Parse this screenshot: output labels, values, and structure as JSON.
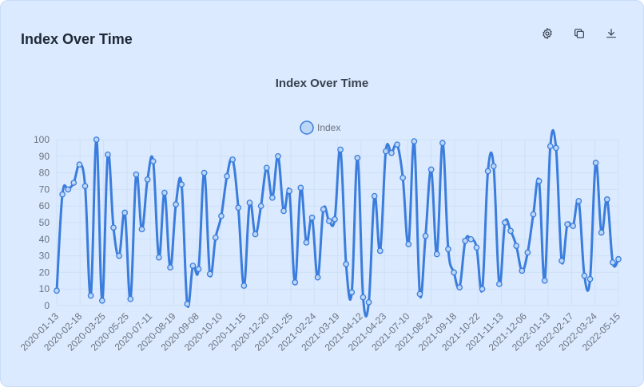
{
  "card": {
    "title": "Index Over Time"
  },
  "toolbar": [
    {
      "name": "settings-icon",
      "icon": "gear"
    },
    {
      "name": "copy-icon",
      "icon": "copy"
    },
    {
      "name": "download-icon",
      "icon": "download"
    }
  ],
  "colors": {
    "line": "#3b7ddd",
    "point_fill": "#bcd6f6",
    "grid": "#cfe0f5",
    "text": "#6b7280",
    "title": "#374151"
  },
  "chart_data": {
    "type": "line",
    "title": "Index Over Time",
    "legend": {
      "entries": [
        "Index"
      ],
      "position": "top-center"
    },
    "ylim": [
      0,
      100
    ],
    "yticks": [
      0,
      10,
      20,
      30,
      40,
      50,
      60,
      70,
      80,
      90,
      100
    ],
    "xtick_labels": [
      "2020-01-13",
      "2020-02-18",
      "2020-03-25",
      "2020-05-25",
      "2020-07-11",
      "2020-08-19",
      "2020-09-08",
      "2020-10-10",
      "2020-11-15",
      "2020-12-20",
      "2021-01-25",
      "2021-02-24",
      "2021-03-19",
      "2021-04-12",
      "2021-04-23",
      "2021-07-10",
      "2021-08-24",
      "2021-09-18",
      "2021-10-22",
      "2021-11-13",
      "2021-12-06",
      "2022-01-13",
      "2022-02-17",
      "2022-03-24",
      "2022-05-15"
    ],
    "grid": true,
    "series": [
      {
        "name": "Index",
        "values": [
          9,
          67,
          70,
          74,
          85,
          72,
          6,
          100,
          3,
          91,
          47,
          30,
          56,
          4,
          79,
          46,
          76,
          87,
          29,
          68,
          23,
          61,
          73,
          1,
          24,
          22,
          80,
          19,
          41,
          54,
          78,
          88,
          59,
          12,
          62,
          43,
          60,
          83,
          65,
          90,
          57,
          69,
          14,
          71,
          38,
          53,
          17,
          58,
          51,
          52,
          94,
          25,
          8,
          89,
          5,
          2,
          66,
          33,
          93,
          92,
          97,
          77,
          37,
          99,
          7,
          42,
          82,
          31,
          98,
          34,
          20,
          11,
          39,
          40,
          35,
          10,
          81,
          84,
          13,
          50,
          45,
          36,
          21,
          32,
          55,
          75,
          15,
          96,
          95,
          27,
          49,
          48,
          63,
          18,
          16,
          86,
          44,
          64,
          26,
          28
        ]
      }
    ]
  }
}
